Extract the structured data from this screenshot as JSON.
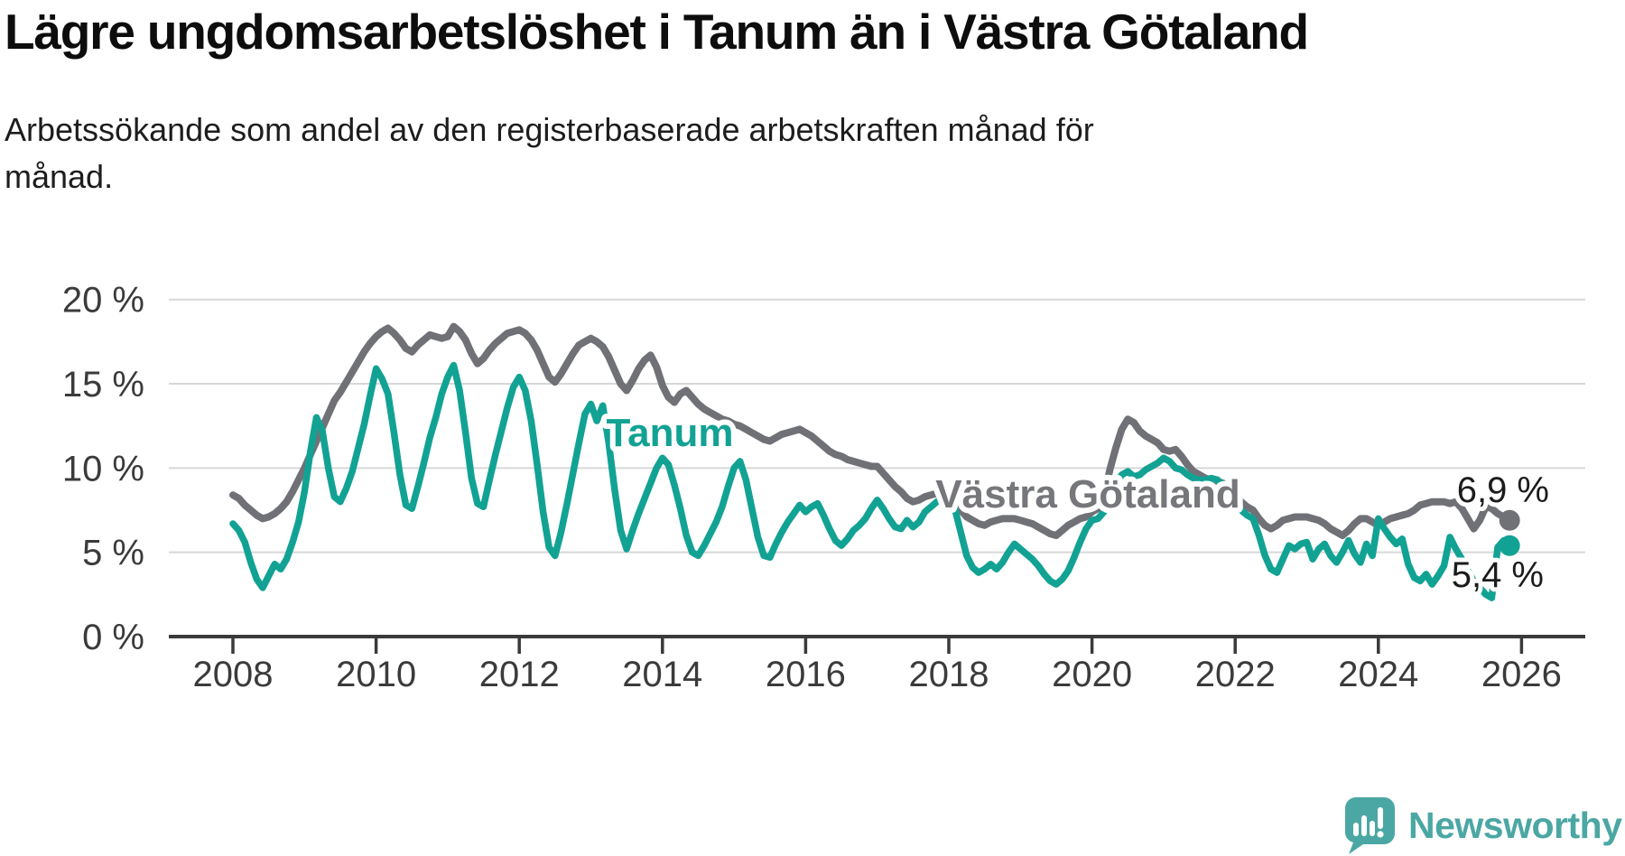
{
  "header": {
    "title": "Lägre ungdomsarbetslöshet i Tanum än i Västra Götaland",
    "subtitle_lines": [
      "Arbetssökande som andel av den registerbaserade arbetskraften månad för",
      "månad."
    ]
  },
  "annotations": {
    "tanum_line_label": "Tanum",
    "vg_line_label": "Västra Götaland",
    "tanum_end_value": "5,4 %",
    "vg_end_value": "6,9 %"
  },
  "footer": {
    "brand": "Newsworthy",
    "logo_icon": "newsworthy-speech-bubble-bar-chart-icon"
  },
  "colors": {
    "tanum": "#12a294",
    "vastra_gotaland": "#707176",
    "grid": "#d8d8d8",
    "axis": "#3a3a3b",
    "tick_text": "#3b3b3b",
    "value_text": "#1c1c1c",
    "brand_teal": "#4ba7a3",
    "background": "#ffffff"
  },
  "chart_data": {
    "type": "line",
    "title": "Lägre ungdomsarbetslöshet i Tanum än i Västra Götaland",
    "subtitle": "Arbetssökande som andel av den registerbaserade arbetskraften månad för månad.",
    "unit": "% av registerbaserad arbetskraft",
    "frequency": "monthly",
    "start_year": 2008,
    "start_month": 1,
    "end_year": 2025,
    "end_month": 11,
    "xlim": [
      2007.1,
      2026.95
    ],
    "ylim": [
      0,
      21.5
    ],
    "grid": "horizontal",
    "legend": "inline-labels",
    "x_ticks": [
      2008,
      2010,
      2012,
      2014,
      2016,
      2018,
      2020,
      2022,
      2024,
      2026
    ],
    "y_ticks": [
      {
        "value": 0,
        "label": "0 %"
      },
      {
        "value": 5,
        "label": "5 %"
      },
      {
        "value": 10,
        "label": "10 %"
      },
      {
        "value": 15,
        "label": "15 %"
      },
      {
        "value": 20,
        "label": "20 %"
      }
    ],
    "series": [
      {
        "name": "Tanum",
        "color": "#12a294",
        "last_value_label": "5,4 %",
        "values": [
          6.7,
          6.3,
          5.6,
          4.4,
          3.4,
          2.9,
          3.6,
          4.3,
          4.0,
          4.6,
          5.6,
          6.8,
          8.6,
          11.0,
          13.0,
          12.2,
          10.0,
          8.3,
          8.0,
          8.8,
          9.8,
          11.2,
          12.6,
          14.3,
          15.9,
          15.3,
          14.4,
          12.1,
          9.6,
          7.8,
          7.6,
          8.9,
          10.3,
          11.8,
          13.0,
          14.4,
          15.4,
          16.1,
          14.6,
          12.1,
          9.4,
          7.9,
          7.7,
          9.3,
          10.8,
          12.2,
          13.6,
          14.8,
          15.4,
          14.6,
          12.8,
          10.2,
          7.4,
          5.3,
          4.8,
          6.2,
          7.9,
          9.7,
          11.5,
          13.2,
          13.8,
          12.8,
          13.7,
          11.5,
          8.7,
          6.3,
          5.2,
          6.3,
          7.3,
          8.2,
          9.1,
          10.0,
          10.6,
          10.2,
          9.0,
          7.6,
          6.0,
          5.0,
          4.8,
          5.4,
          6.1,
          6.8,
          7.7,
          8.9,
          10.0,
          10.4,
          9.3,
          7.6,
          5.9,
          4.8,
          4.7,
          5.5,
          6.2,
          6.8,
          7.3,
          7.8,
          7.4,
          7.7,
          7.9,
          7.2,
          6.4,
          5.7,
          5.4,
          5.8,
          6.3,
          6.6,
          7.0,
          7.6,
          8.1,
          7.6,
          7.0,
          6.5,
          6.4,
          6.9,
          6.5,
          6.8,
          7.4,
          7.7,
          8.0,
          8.3,
          8.7,
          7.6,
          6.2,
          4.8,
          4.1,
          3.8,
          4.0,
          4.3,
          4.0,
          4.4,
          5.0,
          5.5,
          5.2,
          4.9,
          4.6,
          4.2,
          3.7,
          3.3,
          3.1,
          3.4,
          3.9,
          4.7,
          5.6,
          6.4,
          6.9,
          7.0,
          7.4,
          8.4,
          9.1,
          9.6,
          9.8,
          9.5,
          9.6,
          9.9,
          10.1,
          10.3,
          10.6,
          10.4,
          10.0,
          9.9,
          9.6,
          9.4,
          9.3,
          9.3,
          9.4,
          9.3,
          9.0,
          8.6,
          8.3,
          7.5,
          7.2,
          7.0,
          6.0,
          4.8,
          4.0,
          3.8,
          4.6,
          5.4,
          5.2,
          5.5,
          5.6,
          4.6,
          5.2,
          5.5,
          4.8,
          4.4,
          5.0,
          5.7,
          4.9,
          4.4,
          5.5,
          4.8,
          7.0,
          6.4,
          5.9,
          5.5,
          5.8,
          4.3,
          3.5,
          3.3,
          3.7,
          3.1,
          3.6,
          4.2,
          5.9,
          5.2,
          4.6,
          3.9,
          3.3,
          2.9,
          2.5,
          2.3,
          5.3,
          5.7,
          5.4
        ]
      },
      {
        "name": "Västra Götaland",
        "color": "#707176",
        "last_value_label": "6,9 %",
        "values": [
          8.4,
          8.2,
          7.8,
          7.5,
          7.2,
          7.0,
          7.1,
          7.3,
          7.6,
          8.0,
          8.6,
          9.3,
          10.0,
          10.8,
          11.6,
          12.4,
          13.2,
          14.0,
          14.5,
          15.1,
          15.7,
          16.3,
          16.9,
          17.4,
          17.8,
          18.1,
          18.3,
          18.0,
          17.6,
          17.1,
          16.9,
          17.3,
          17.6,
          17.9,
          17.8,
          17.7,
          17.8,
          18.4,
          18.1,
          17.6,
          16.8,
          16.2,
          16.5,
          17.0,
          17.4,
          17.7,
          18.0,
          18.1,
          18.2,
          18.0,
          17.6,
          17.0,
          16.2,
          15.4,
          15.1,
          15.6,
          16.2,
          16.8,
          17.3,
          17.5,
          17.7,
          17.5,
          17.2,
          16.6,
          15.8,
          15.0,
          14.6,
          15.2,
          15.9,
          16.4,
          16.7,
          16.0,
          14.9,
          14.2,
          13.9,
          14.4,
          14.6,
          14.2,
          13.8,
          13.5,
          13.3,
          13.1,
          12.9,
          12.8,
          12.6,
          12.5,
          12.3,
          12.1,
          11.9,
          11.7,
          11.6,
          11.8,
          12.0,
          12.1,
          12.2,
          12.3,
          12.1,
          11.9,
          11.6,
          11.3,
          11.0,
          10.8,
          10.7,
          10.5,
          10.4,
          10.3,
          10.2,
          10.1,
          10.1,
          9.7,
          9.3,
          8.9,
          8.6,
          8.2,
          8.0,
          8.1,
          8.3,
          8.4,
          8.5,
          8.5,
          8.4,
          8.0,
          7.5,
          7.1,
          6.9,
          6.7,
          6.6,
          6.8,
          6.9,
          7.0,
          7.0,
          7.0,
          6.9,
          6.8,
          6.7,
          6.5,
          6.3,
          6.1,
          6.0,
          6.3,
          6.6,
          6.8,
          7.0,
          7.1,
          7.4,
          7.6,
          8.3,
          9.9,
          11.2,
          12.3,
          12.9,
          12.7,
          12.2,
          11.9,
          11.7,
          11.5,
          11.1,
          11.0,
          11.1,
          10.7,
          10.2,
          9.8,
          9.6,
          9.4,
          9.3,
          9.2,
          9.1,
          8.8,
          8.4,
          8.0,
          7.7,
          7.5,
          7.0,
          6.6,
          6.4,
          6.6,
          6.9,
          7.0,
          7.1,
          7.1,
          7.1,
          7.0,
          6.9,
          6.7,
          6.4,
          6.2,
          6.0,
          6.3,
          6.7,
          7.0,
          7.0,
          6.8,
          6.6,
          6.8,
          7.0,
          7.1,
          7.2,
          7.3,
          7.5,
          7.8,
          7.9,
          8.0,
          8.0,
          8.0,
          7.9,
          8.0,
          7.6,
          7.0,
          6.4,
          6.9,
          7.7,
          7.6,
          7.3,
          7.1,
          6.9
        ]
      }
    ]
  }
}
